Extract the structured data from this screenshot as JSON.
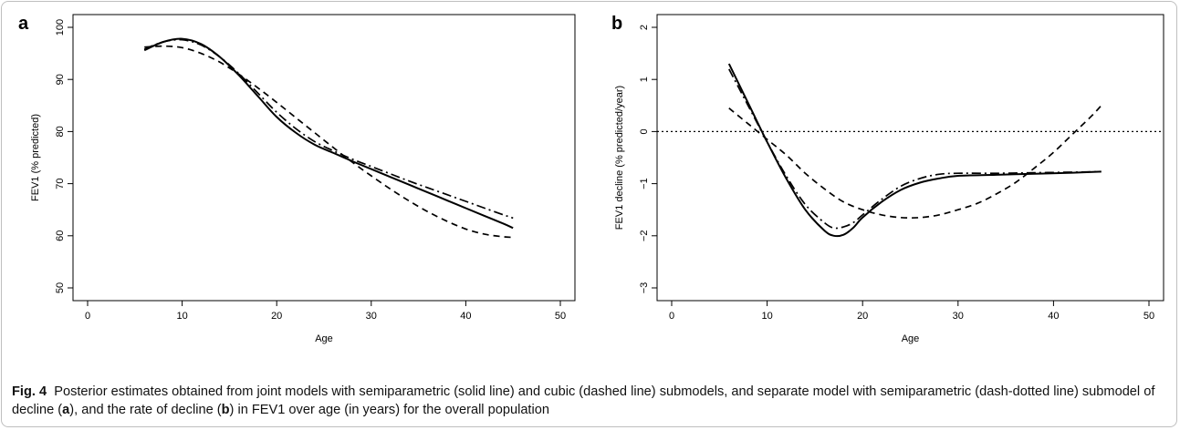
{
  "chart_data": [
    {
      "panel_label": "a",
      "type": "line",
      "xlabel": "Age",
      "ylabel": "FEV1 (% predicted)",
      "xlim": [
        0,
        50
      ],
      "ylim": [
        50,
        100
      ],
      "xticks": [
        0,
        10,
        20,
        30,
        40,
        50
      ],
      "yticks": [
        50,
        60,
        70,
        80,
        90,
        100
      ],
      "series": [
        {
          "style": "solid",
          "x": [
            6,
            8,
            10,
            12,
            14,
            16,
            18,
            20,
            22,
            24,
            26,
            28,
            30,
            32,
            34,
            36,
            38,
            40,
            42,
            44,
            45
          ],
          "y": [
            95.6,
            97.2,
            97.8,
            96.8,
            94.3,
            90.8,
            86.8,
            82.8,
            79.8,
            77.5,
            75.9,
            74.3,
            72.8,
            71.3,
            69.8,
            68.3,
            66.8,
            65.3,
            63.8,
            62.3,
            61.5
          ]
        },
        {
          "style": "dashed",
          "x": [
            6,
            8,
            10,
            12,
            14,
            16,
            18,
            20,
            22,
            24,
            26,
            28,
            30,
            32,
            34,
            36,
            38,
            40,
            42,
            44,
            45
          ],
          "y": [
            96.2,
            96.4,
            96.1,
            95.0,
            93.3,
            91.0,
            88.4,
            85.6,
            82.7,
            79.8,
            76.9,
            74.1,
            71.5,
            69.0,
            66.7,
            64.6,
            62.8,
            61.3,
            60.3,
            59.8,
            59.7
          ]
        },
        {
          "style": "dash-dot",
          "x": [
            6,
            8,
            10,
            12,
            14,
            16,
            18,
            20,
            22,
            24,
            26,
            28,
            30,
            32,
            34,
            36,
            38,
            40,
            42,
            44,
            45
          ],
          "y": [
            95.8,
            97.2,
            97.6,
            96.6,
            94.3,
            91.1,
            87.4,
            83.7,
            80.6,
            78.1,
            76.3,
            74.7,
            73.3,
            71.9,
            70.5,
            69.2,
            67.9,
            66.6,
            65.3,
            64.0,
            63.4
          ]
        }
      ]
    },
    {
      "panel_label": "b",
      "type": "line",
      "xlabel": "Age",
      "ylabel": "FEV1 decline (% predicted/year)",
      "xlim": [
        0,
        50
      ],
      "ylim": [
        -3,
        2
      ],
      "xticks": [
        0,
        10,
        20,
        30,
        40,
        50
      ],
      "yticks": [
        -3,
        -2,
        -1,
        0,
        1,
        2
      ],
      "reference_line": {
        "y": 0,
        "style": "dotted"
      },
      "series": [
        {
          "style": "solid",
          "x": [
            6,
            8,
            10,
            12,
            14,
            16,
            17,
            18,
            19,
            20,
            22,
            24,
            26,
            28,
            30,
            34,
            38,
            42,
            45
          ],
          "y": [
            1.3,
            0.55,
            -0.2,
            -0.9,
            -1.5,
            -1.9,
            -2.0,
            -1.98,
            -1.85,
            -1.65,
            -1.35,
            -1.12,
            -0.98,
            -0.9,
            -0.85,
            -0.83,
            -0.81,
            -0.79,
            -0.77
          ]
        },
        {
          "style": "dashed",
          "x": [
            6,
            8,
            10,
            12,
            14,
            16,
            18,
            20,
            22,
            24,
            26,
            28,
            30,
            32,
            34,
            36,
            38,
            40,
            42,
            44,
            45
          ],
          "y": [
            0.45,
            0.15,
            -0.15,
            -0.45,
            -0.8,
            -1.1,
            -1.35,
            -1.5,
            -1.6,
            -1.65,
            -1.65,
            -1.6,
            -1.5,
            -1.38,
            -1.2,
            -0.98,
            -0.7,
            -0.4,
            -0.05,
            0.3,
            0.5
          ]
        },
        {
          "style": "dash-dot",
          "x": [
            6,
            8,
            10,
            12,
            14,
            16,
            17,
            18,
            19,
            20,
            22,
            24,
            26,
            28,
            30,
            34,
            38,
            42,
            45
          ],
          "y": [
            1.2,
            0.5,
            -0.2,
            -0.85,
            -1.4,
            -1.75,
            -1.85,
            -1.83,
            -1.75,
            -1.6,
            -1.3,
            -1.05,
            -0.9,
            -0.82,
            -0.8,
            -0.8,
            -0.79,
            -0.78,
            -0.77
          ]
        }
      ]
    }
  ],
  "caption": {
    "fig_label": "Fig. 4",
    "part1": "Posterior estimates obtained from joint models with semiparametric (solid line) and cubic (dashed line) submodels, and separate model with semiparametric (dash-dotted line) submodel of decline (",
    "ref_a": "a",
    "part2": "), and the rate of decline (",
    "ref_b": "b",
    "part3": ") in FEV1 over age (in years) for the overall population"
  }
}
